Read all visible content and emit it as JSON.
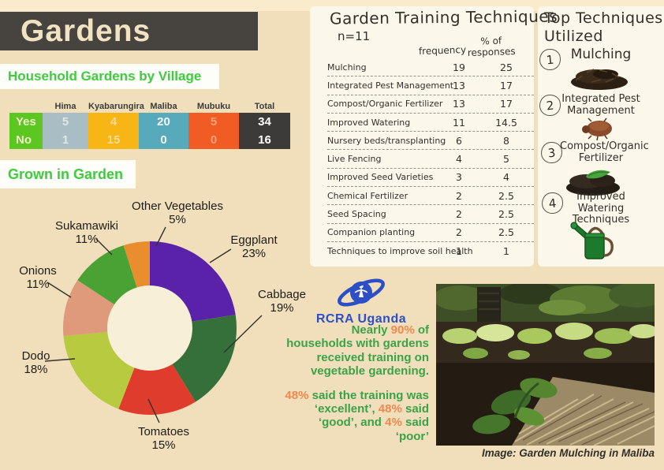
{
  "header": {
    "title": "Gardens"
  },
  "village_section": {
    "heading": "Household Gardens by Village",
    "columns": [
      "Hima",
      "Kyabarungira",
      "Maliba",
      "Mubuku",
      "Total"
    ],
    "rows": [
      {
        "label": "Yes",
        "hima": "5",
        "kyabarungira": "4",
        "maliba": "20",
        "mubuku": "5",
        "total": "34"
      },
      {
        "label": "No",
        "hima": "1",
        "kyabarungira": "15",
        "maliba": "0",
        "mubuku": "0",
        "total": "16"
      }
    ]
  },
  "chart_data": {
    "type": "pie",
    "variant": "donut",
    "title": "Grown in Garden",
    "legend_position": "outside-labels",
    "segments": [
      {
        "label": "Eggplant",
        "pct": 23,
        "pct_text": "23%",
        "color": "#5a22a8"
      },
      {
        "label": "Cabbage",
        "pct": 19,
        "pct_text": "19%",
        "color": "#35703a"
      },
      {
        "label": "Tomatoes",
        "pct": 15,
        "pct_text": "15%",
        "color": "#df3c2d"
      },
      {
        "label": "Dodo",
        "pct": 18,
        "pct_text": "18%",
        "color": "#b8ca3f"
      },
      {
        "label": "Onions",
        "pct": 11,
        "pct_text": "11%",
        "color": "#de9a7b"
      },
      {
        "label": "Sukamawiki",
        "pct": 11,
        "pct_text": "11%",
        "color": "#4aa235"
      },
      {
        "label": "Other Vegetables",
        "pct": 5,
        "pct_text": "5%",
        "color": "#ea8d2f"
      }
    ]
  },
  "training_table": {
    "title": "Garden Training Techniques",
    "n_label": "n=11",
    "col_frequency": "frequency",
    "col_pct_line1": "% of",
    "col_pct_line2": "responses",
    "rows": [
      {
        "technique": "Mulching",
        "frequency": "19",
        "pct": "25"
      },
      {
        "technique": "Integrated Pest Management",
        "frequency": "13",
        "pct": "17"
      },
      {
        "technique": "Compost/Organic Fertilizer",
        "frequency": "13",
        "pct": "17"
      },
      {
        "technique": "Improved Watering",
        "frequency": "11",
        "pct": "14.5"
      },
      {
        "technique": "Nursery beds/transplanting",
        "frequency": "6",
        "pct": "8"
      },
      {
        "technique": "Live Fencing",
        "frequency": "4",
        "pct": "5"
      },
      {
        "technique": "Improved Seed Varieties",
        "frequency": "3",
        "pct": "4"
      },
      {
        "technique": "Chemical Fertilizer",
        "frequency": "2",
        "pct": "2.5"
      },
      {
        "technique": "Seed Spacing",
        "frequency": "2",
        "pct": "2.5"
      },
      {
        "technique": "Companion planting",
        "frequency": "2",
        "pct": "2.5"
      },
      {
        "technique": "Techniques to improve soil health",
        "frequency": "1",
        "pct": "1"
      }
    ]
  },
  "top_techniques": {
    "title_line1": "Top Techniques",
    "title_line2": "Utilized",
    "items": [
      {
        "num": "1",
        "label": "Mulching",
        "icon": "mulch-icon"
      },
      {
        "num": "2",
        "label": "Integrated Pest Management",
        "icon": "bug-icon"
      },
      {
        "num": "3",
        "label": "Compost/Organic Fertilizer",
        "icon": "compost-icon"
      },
      {
        "num": "4",
        "label": "Improved Watering Techniques",
        "icon": "watering-can-icon"
      }
    ]
  },
  "logo": {
    "text": "RCRA Uganda",
    "color": "#2b4fc6"
  },
  "stats": {
    "p1": [
      {
        "t": "Nearly "
      },
      {
        "t": "90%",
        "hl": true
      },
      {
        "t": " of households with gardens received training on vegetable gardening."
      }
    ],
    "p2": [
      {
        "t": "48%",
        "hl": true
      },
      {
        "t": " said the training was ‘excellent’,  "
      },
      {
        "t": "48%",
        "hl": true
      },
      {
        "t": " said ‘good’, and "
      },
      {
        "t": "4%",
        "hl": true
      },
      {
        "t": " said ‘poor’"
      }
    ]
  },
  "photo": {
    "caption": "Image: Garden Mulching in Maliba"
  }
}
